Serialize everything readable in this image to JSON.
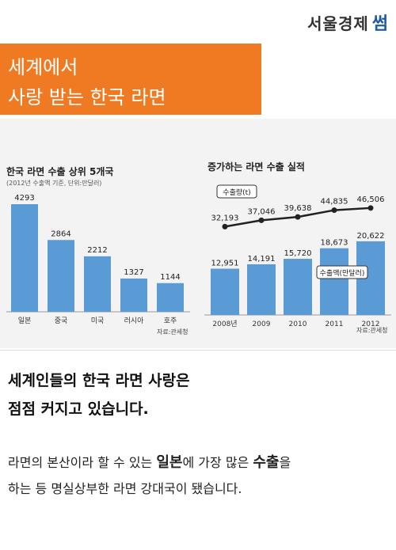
{
  "brand": {
    "logo_text": "서울경제",
    "logo_mark": "썸"
  },
  "title": {
    "line1": "세계에서",
    "line2": "사랑 받는 한국 라면"
  },
  "chart_data": [
    {
      "type": "bar",
      "title": "한국 라면 수출 상위 5개국",
      "subtitle": "(2012년 수출액 기준, 단위:만달러)",
      "categories": [
        "일본",
        "중국",
        "미국",
        "러시아",
        "호주"
      ],
      "values": [
        4293,
        2864,
        2212,
        1327,
        1144
      ],
      "ylim": [
        0,
        4500
      ],
      "source": "자료:관세청",
      "color": "#5b9bd5"
    },
    {
      "type": "bar",
      "title": "증가하는 라면 수출 실적",
      "categories": [
        "2008년",
        "2009",
        "2010",
        "2011",
        "2012"
      ],
      "series": [
        {
          "name": "수출액(만달러)",
          "type": "bar",
          "values": [
            12951,
            14191,
            15720,
            18673,
            20622
          ]
        },
        {
          "name": "수출량(t)",
          "type": "line",
          "values": [
            32193,
            37046,
            39638,
            44835,
            46506
          ]
        }
      ],
      "bar_labels": [
        "12,951",
        "14,191",
        "15,720",
        "18,673",
        "20,622"
      ],
      "line_labels": [
        "32,193",
        "37,046",
        "39,638",
        "44,835",
        "46,506"
      ],
      "legend_line": "수출량(t)",
      "legend_bar": "수출액(만달러)",
      "source": "자료:관세청",
      "color": "#5b9bd5"
    }
  ],
  "headline": {
    "line1": "세계인들의 한국 라면 사랑은",
    "line2": "점점 커지고 있습니다."
  },
  "body": {
    "l1_pre": "라면의 본산이라 할 수 있는 ",
    "l1_bold1": "일본",
    "l1_mid": "에 가장 많은 ",
    "l1_bold2": "수출",
    "l1_post": "을",
    "l2": "하는 등 명실상부한 라면 강대국이 됐습니다."
  }
}
